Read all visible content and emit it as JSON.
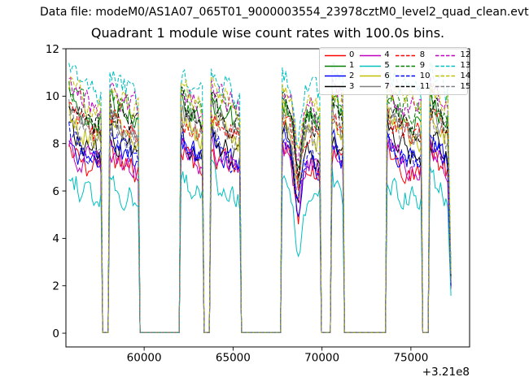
{
  "figure": {
    "header": "Data file: modeM0/AS1A07_065T01_9000003554_23978cztM0_level2_quad_clean.evt",
    "title": "Quadrant 1 module wise count rates with 100.0s bins."
  },
  "axes": {
    "x_tick_labels": [
      "60000",
      "65000",
      "70000",
      "75000"
    ],
    "y_tick_labels": [
      "0",
      "2",
      "4",
      "6",
      "8",
      "10",
      "12"
    ],
    "x_offset_label": "+3.21e8"
  },
  "legend": {
    "ncol": 4,
    "location": "upper right",
    "labels": [
      "0",
      "1",
      "2",
      "3",
      "4",
      "5",
      "6",
      "7",
      "8",
      "9",
      "10",
      "11",
      "12",
      "13",
      "14",
      "15"
    ]
  },
  "chart_data": {
    "type": "line",
    "title": "Quadrant 1 module wise count rates with 100.0s bins.",
    "xlabel": "",
    "ylabel": "",
    "x_offset_label": "+3.21e8",
    "xlim": [
      55600,
      78300
    ],
    "ylim": [
      -0.58,
      12
    ],
    "x_ticks": [
      60000,
      65000,
      70000,
      75000
    ],
    "y_ticks": [
      0,
      2,
      4,
      6,
      8,
      10,
      12
    ],
    "grid": false,
    "bin_seconds": 100,
    "t_start": 55770,
    "t_end": 77150,
    "on_intervals": [
      [
        55770,
        57650
      ],
      [
        57990,
        59750
      ],
      [
        62000,
        63330
      ],
      [
        63700,
        65400
      ],
      [
        67700,
        69890
      ],
      [
        70480,
        71250
      ],
      [
        73600,
        75590
      ],
      [
        75990,
        77150
      ]
    ],
    "off_rate": 0.03,
    "dip": {
      "t_center": 68650,
      "sigma": 260,
      "depth": 2.3,
      "window": 1200
    },
    "end_drop": {
      "t": 77250,
      "rate": 2.2
    },
    "block_shape": {
      "peak_boost": 0.8,
      "decay_tau": 600,
      "end_sag": 0.5,
      "noise_amp": 1.0,
      "noise_persist": 0.45,
      "max_rate": 11.4,
      "min_rate": 0.35
    },
    "series": [
      {
        "name": "0",
        "color": "#ff0000",
        "linestyle": "solid",
        "mean_rate": 7.15
      },
      {
        "name": "1",
        "color": "#008000",
        "linestyle": "solid",
        "mean_rate": 9.2
      },
      {
        "name": "2",
        "color": "#0000ff",
        "linestyle": "solid",
        "mean_rate": 7.55
      },
      {
        "name": "3",
        "color": "#000000",
        "linestyle": "solid",
        "mean_rate": 7.85
      },
      {
        "name": "4",
        "color": "#bf00bf",
        "linestyle": "solid",
        "mean_rate": 7.35
      },
      {
        "name": "5",
        "color": "#00bfbf",
        "linestyle": "solid",
        "mean_rate": 6.0
      },
      {
        "name": "6",
        "color": "#bfbf00",
        "linestyle": "solid",
        "mean_rate": 8.55
      },
      {
        "name": "7",
        "color": "#808080",
        "linestyle": "solid",
        "mean_rate": 8.85
      },
      {
        "name": "8",
        "color": "#ff0000",
        "linestyle": "dashed",
        "mean_rate": 8.75
      },
      {
        "name": "9",
        "color": "#008000",
        "linestyle": "dashed",
        "mean_rate": 9.55
      },
      {
        "name": "10",
        "color": "#0000ff",
        "linestyle": "dashed",
        "mean_rate": 7.7
      },
      {
        "name": "11",
        "color": "#000000",
        "linestyle": "dashed",
        "mean_rate": 9.05
      },
      {
        "name": "12",
        "color": "#bf00bf",
        "linestyle": "dashed",
        "mean_rate": 9.85
      },
      {
        "name": "13",
        "color": "#00bfbf",
        "linestyle": "dashed",
        "mean_rate": 10.45
      },
      {
        "name": "14",
        "color": "#bfbf00",
        "linestyle": "dashed",
        "mean_rate": 9.95
      },
      {
        "name": "15",
        "color": "#808080",
        "linestyle": "dashed",
        "mean_rate": 8.45
      }
    ]
  }
}
